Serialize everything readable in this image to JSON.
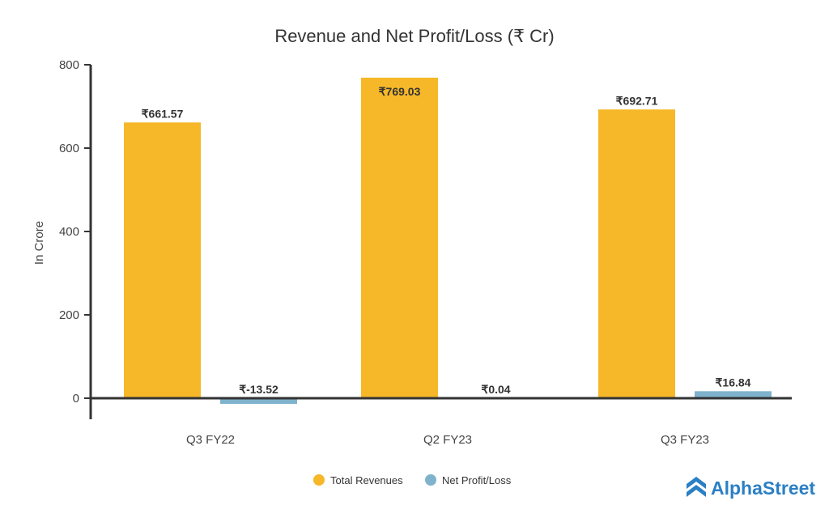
{
  "chart_data": {
    "type": "bar",
    "title": "Revenue and Net Profit/Loss (₹ Cr)",
    "xlabel": "",
    "ylabel": "In Crore",
    "ylim": [
      -50,
      800
    ],
    "yticks": [
      0,
      200,
      400,
      600,
      800
    ],
    "categories": [
      "Q3 FY22",
      "Q2 FY23",
      "Q3 FY23"
    ],
    "series": [
      {
        "name": "Total Revenues",
        "color": "#f6b829",
        "values": [
          661.57,
          769.03,
          692.71
        ],
        "labels": [
          "₹661.57",
          "₹769.03",
          "₹692.71"
        ]
      },
      {
        "name": "Net Profit/Loss",
        "color": "#7fb2cc",
        "values": [
          -13.52,
          0.04,
          16.84
        ],
        "labels": [
          "₹-13.52",
          "₹0.04",
          "₹16.84"
        ]
      }
    ],
    "legend": "bottom-center",
    "grid": false
  },
  "brand": {
    "name": "AlphaStreet",
    "color": "#2b7fc4"
  }
}
